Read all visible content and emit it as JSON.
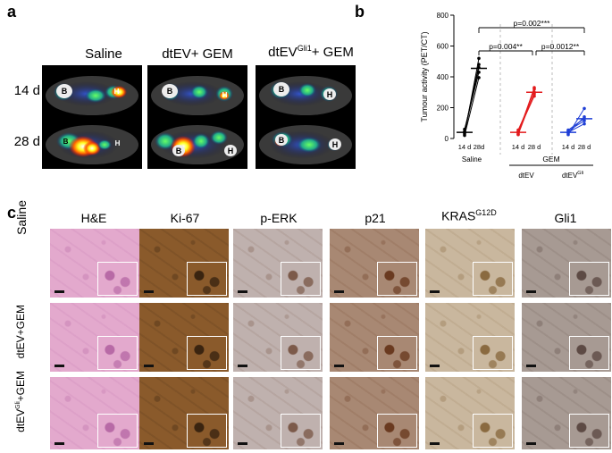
{
  "panel_a": {
    "letter": "a",
    "columns": [
      "Saline",
      "dtEV+ GEM",
      "dtEV",
      "Gli1",
      "+ GEM"
    ],
    "rows": [
      "14 d",
      "28 d"
    ],
    "organ_labels": {
      "bone": "B",
      "heart": "H"
    }
  },
  "panel_b": {
    "letter": "b",
    "sig_labels": [
      "p=0.002***",
      "p=0.004**",
      "p=0.0012**"
    ],
    "xtick_labels": [
      "14 d",
      "28d",
      "14 d",
      "28 d",
      "14 d",
      "28 d"
    ],
    "group_labels": [
      "Saline",
      "GEM",
      "dtEV",
      "dtEV",
      "Gli"
    ]
  },
  "chart_data": {
    "type": "line",
    "ylabel": "Tumour activity (PET/CT)",
    "ylim": [
      0,
      800
    ],
    "yticks": [
      0,
      200,
      400,
      600,
      800
    ],
    "x_per_group": [
      "14 d",
      "28d"
    ],
    "series": [
      {
        "group": "Saline",
        "color": "#000000",
        "pairs": [
          [
            30,
            520
          ],
          [
            45,
            480
          ],
          [
            60,
            430
          ],
          [
            20,
            395
          ],
          [
            40,
            460
          ]
        ],
        "mean": [
          40,
          455
        ]
      },
      {
        "group": "dtEV",
        "color": "#e31a1c",
        "pairs": [
          [
            25,
            300
          ],
          [
            40,
            320
          ],
          [
            55,
            290
          ],
          [
            30,
            330
          ],
          [
            45,
            275
          ]
        ],
        "mean": [
          40,
          300
        ]
      },
      {
        "group": "dtEV Gli",
        "color": "#1f3fd6",
        "pairs": [
          [
            25,
            195
          ],
          [
            35,
            140
          ],
          [
            50,
            115
          ],
          [
            40,
            95
          ],
          [
            55,
            130
          ]
        ],
        "mean": [
          40,
          128
        ]
      }
    ],
    "comparisons": [
      {
        "label": "p=0.002***",
        "from": "Saline 28d",
        "to": "dtEV Gli 28 d"
      },
      {
        "label": "p=0.004**",
        "from": "Saline 28d",
        "to": "dtEV 28 d"
      },
      {
        "label": "p=0.0012**",
        "from": "dtEV 28 d",
        "to": "dtEV Gli 28 d"
      }
    ]
  },
  "panel_c": {
    "letter": "c",
    "columns": [
      "H&E",
      "Ki-67",
      "p-ERK",
      "p21",
      "KRAS",
      "G12D",
      "Gli1"
    ],
    "rows": [
      "Saline",
      "dtEV+GEM",
      "dtEV",
      "Gli",
      "+GEM"
    ]
  },
  "colors": {
    "he": "#e3a9cd",
    "he_dark": "#b86aa6",
    "ki67": "#8a5a2b",
    "perk": "#bfb1ae",
    "p21": "#a88873",
    "kras": "#c9b79e",
    "gli1": "#a79a93"
  }
}
